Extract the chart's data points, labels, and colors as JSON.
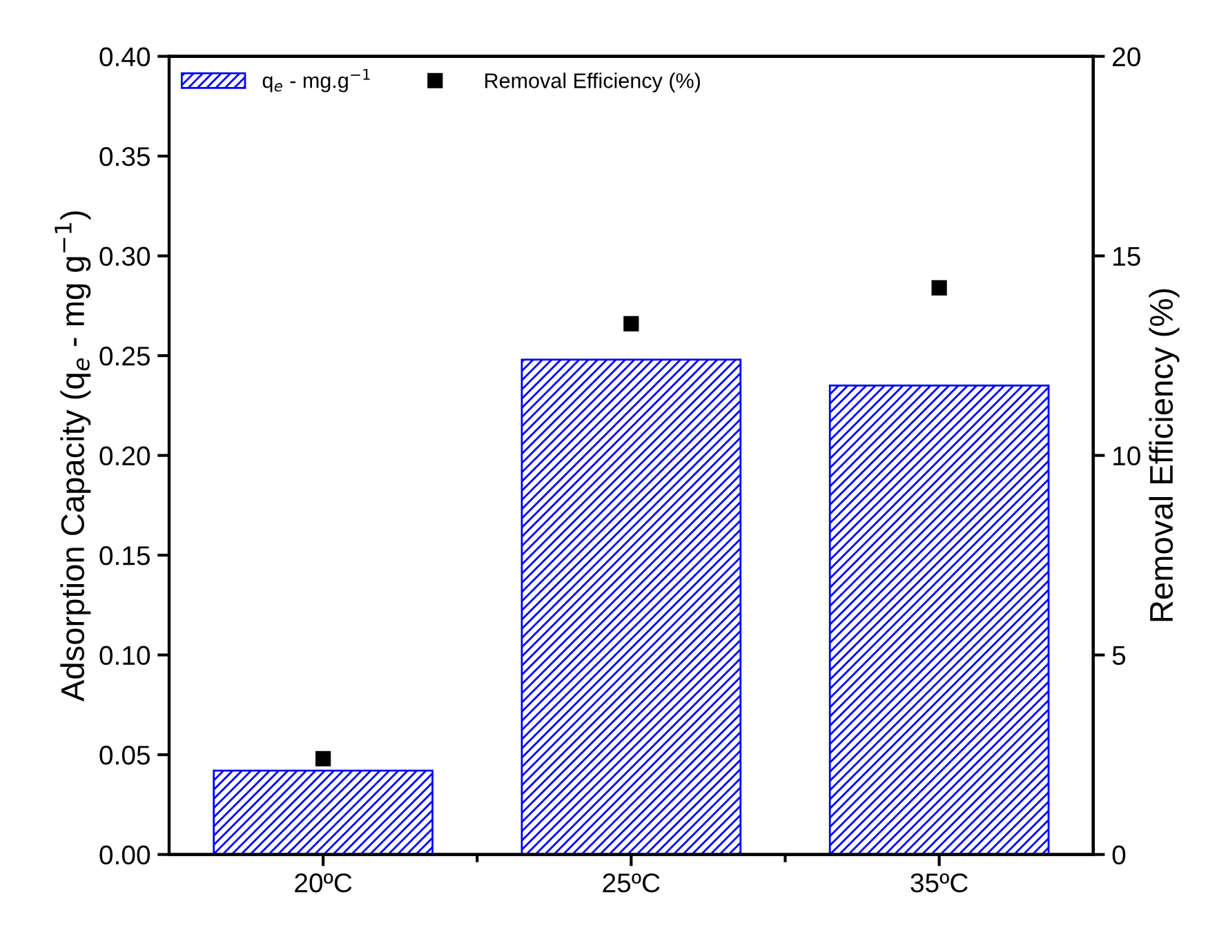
{
  "chart_data": {
    "type": "bar",
    "categories": [
      "20ºC",
      "25ºC",
      "35ºC"
    ],
    "ylabel": "Adsorption Capacity (q$_{e}$ - mg g$^{−1}$)",
    "y2label": "Removal Efficiency (%)",
    "series": [
      {
        "name": "q$_{e}$ - mg.g$^{−1}$",
        "color": "#0000ff",
        "values": [
          0.042,
          0.248,
          0.235
        ]
      },
      {
        "name": "Removal Efficiency (%)",
        "type": "scatter",
        "axis": "y2",
        "color": "#000000",
        "marker": "square",
        "values": [
          2.4,
          13.3,
          14.2
        ]
      }
    ],
    "ylim": [
      0,
      0.4
    ],
    "yticks": [
      {
        "value": 0,
        "label": "0.00"
      },
      {
        "value": 0.05,
        "label": "0.05"
      },
      {
        "value": 0.1,
        "label": "0.10"
      },
      {
        "value": 0.15,
        "label": "0.15"
      },
      {
        "value": 0.2,
        "label": "0.20"
      },
      {
        "value": 0.25,
        "label": "0.25"
      },
      {
        "value": 0.3,
        "label": "0.30"
      },
      {
        "value": 0.35,
        "label": "0.35"
      },
      {
        "value": 0.4,
        "label": "0.40"
      }
    ],
    "y2lim": [
      0,
      20
    ],
    "y2ticks": [
      0,
      5,
      10,
      15,
      20
    ],
    "legend": "top left",
    "grid": false
  }
}
